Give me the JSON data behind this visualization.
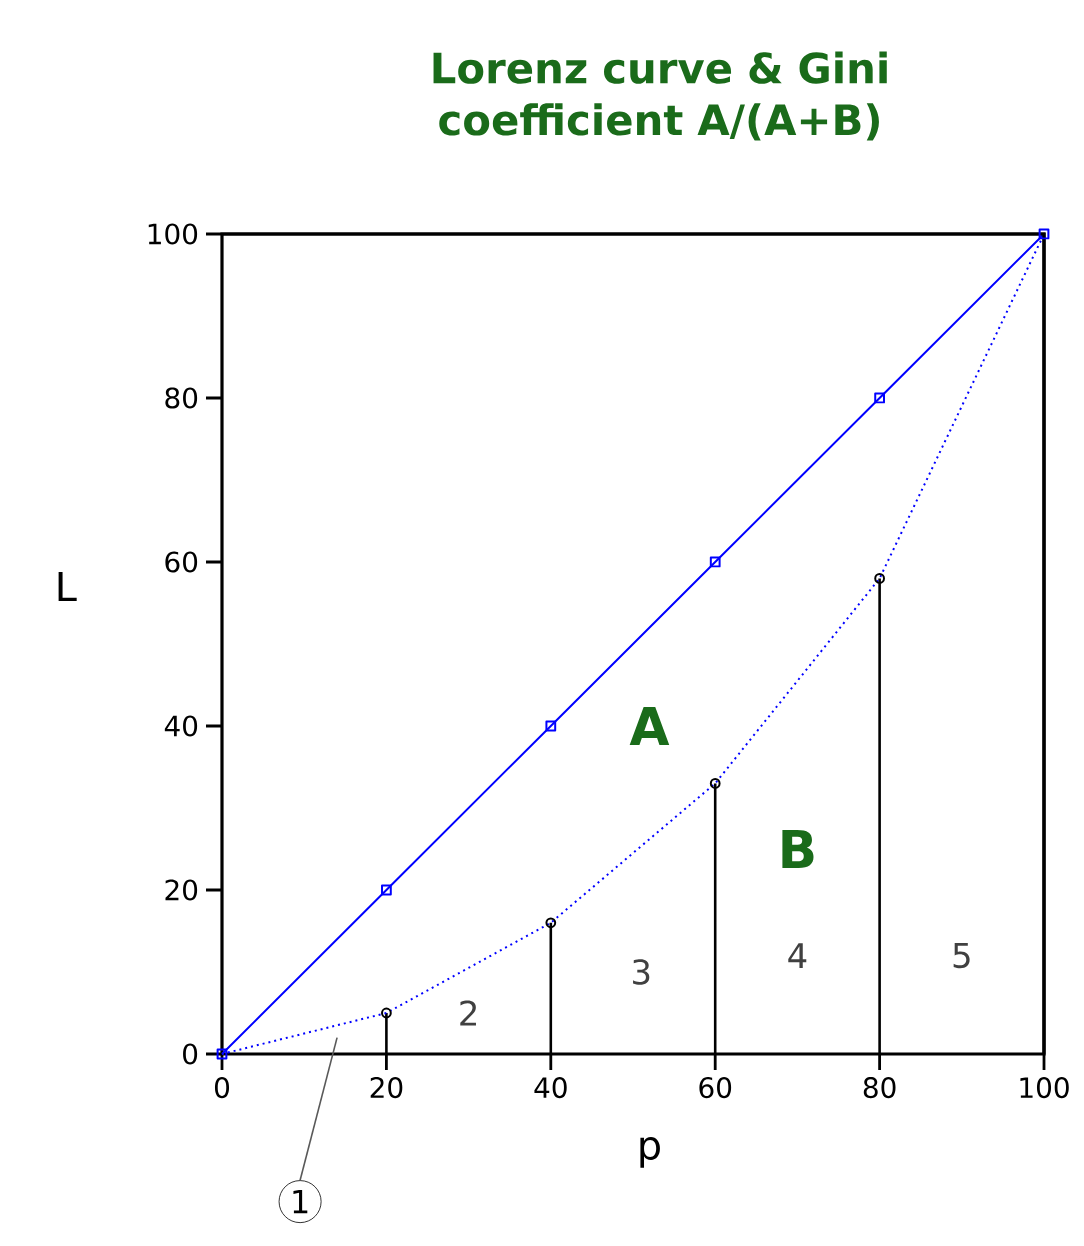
{
  "chart_data": {
    "type": "line",
    "title": "Lorenz curve & Gini\ncoefficient A/(A+B)",
    "xlabel": "p",
    "ylabel": "L",
    "x": [
      0,
      20,
      40,
      60,
      80,
      100
    ],
    "series": [
      {
        "color": "#0000ff",
        "values": [
          0,
          20,
          40,
          60,
          80,
          100
        ],
        "marker": "square",
        "line_style": "solid"
      },
      {
        "type": "lollipop",
        "color": "#000000",
        "values": [
          null,
          5,
          16,
          33,
          58,
          null
        ],
        "marker": "circle"
      },
      {
        "color": "#0000ff",
        "values": [
          0,
          5,
          16,
          33,
          58,
          100
        ],
        "marker": "none",
        "line_style": "dotted"
      }
    ],
    "xlim": [
      0,
      100
    ],
    "ylim": [
      0,
      100
    ],
    "xticks": [
      0,
      20,
      40,
      60,
      80,
      100
    ],
    "yticks": [
      0,
      20,
      40,
      60,
      80,
      100
    ],
    "grid": false,
    "annotations": [
      "A",
      "B",
      "1",
      "2",
      "3",
      "4",
      "5"
    ]
  }
}
